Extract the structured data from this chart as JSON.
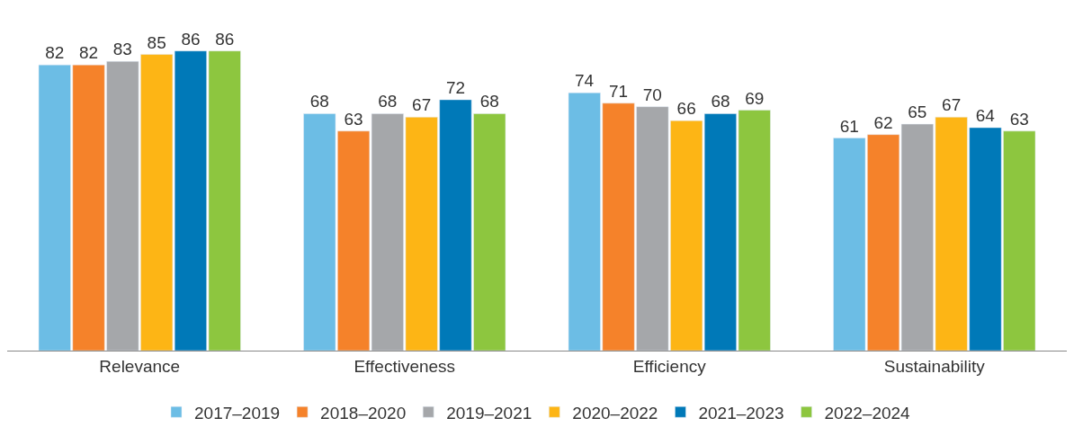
{
  "chart_data": {
    "type": "bar",
    "categories": [
      "Relevance",
      "Effectiveness",
      "Efficiency",
      "Sustainability"
    ],
    "series": [
      {
        "name": "2017–2019",
        "color": "#6cbde5",
        "values": [
          82,
          68,
          74,
          61
        ]
      },
      {
        "name": "2018–2020",
        "color": "#f5822a",
        "values": [
          82,
          63,
          71,
          62
        ]
      },
      {
        "name": "2019–2021",
        "color": "#a5a7aa",
        "values": [
          83,
          68,
          70,
          65
        ]
      },
      {
        "name": "2020–2022",
        "color": "#fdb515",
        "values": [
          85,
          67,
          66,
          67
        ]
      },
      {
        "name": "2021–2023",
        "color": "#0079b8",
        "values": [
          86,
          72,
          68,
          64
        ]
      },
      {
        "name": "2022–2024",
        "color": "#8dc63f",
        "values": [
          86,
          68,
          69,
          63
        ]
      }
    ],
    "data_labels": true,
    "legend": "bottom"
  }
}
